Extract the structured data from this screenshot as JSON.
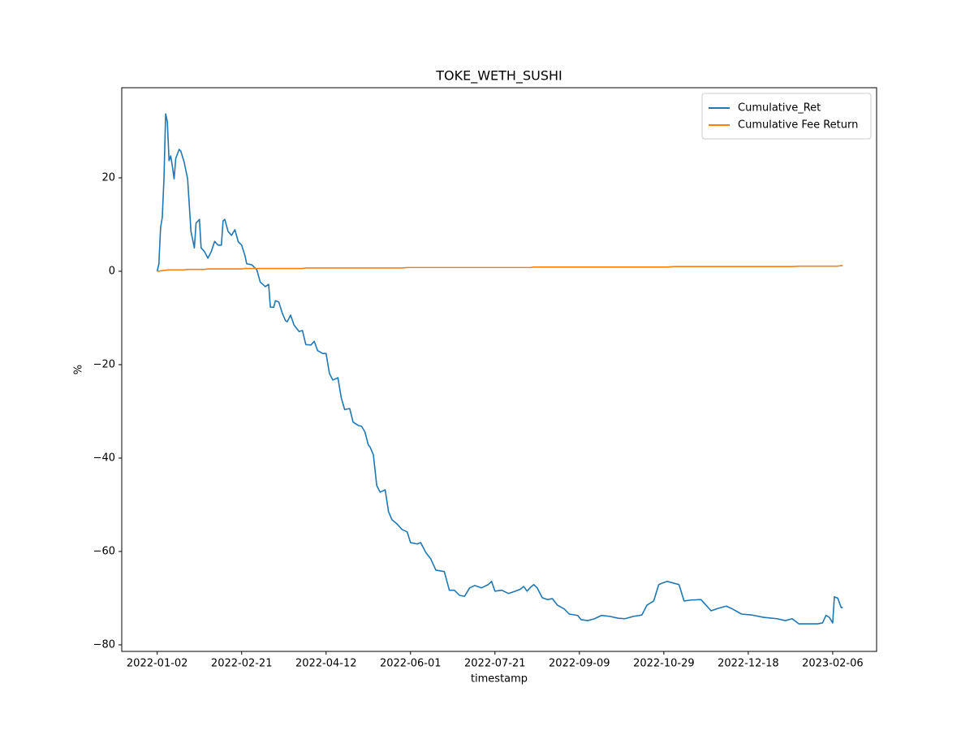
{
  "chart_data": {
    "type": "line",
    "title": "TOKE_WETH_SUSHI",
    "x_label": "timestamp",
    "y_label": "%",
    "x": [
      "2022-01-02",
      "2022-01-03",
      "2022-01-04",
      "2022-01-05",
      "2022-01-06",
      "2022-01-07",
      "2022-01-08",
      "2022-01-09",
      "2022-01-10",
      "2022-01-11",
      "2022-01-12",
      "2022-01-13",
      "2022-01-15",
      "2022-01-16",
      "2022-01-18",
      "2022-01-20",
      "2022-01-22",
      "2022-01-24",
      "2022-01-25",
      "2022-01-27",
      "2022-01-28",
      "2022-01-30",
      "2022-02-01",
      "2022-02-03",
      "2022-02-05",
      "2022-02-07",
      "2022-02-09",
      "2022-02-10",
      "2022-02-11",
      "2022-02-13",
      "2022-02-15",
      "2022-02-17",
      "2022-02-19",
      "2022-02-21",
      "2022-02-23",
      "2022-02-24",
      "2022-02-27",
      "2022-03-02",
      "2022-03-04",
      "2022-03-07",
      "2022-03-09",
      "2022-03-10",
      "2022-03-12",
      "2022-03-13",
      "2022-03-15",
      "2022-03-17",
      "2022-03-19",
      "2022-03-20",
      "2022-03-22",
      "2022-03-24",
      "2022-03-27",
      "2022-03-29",
      "2022-03-31",
      "2022-04-03",
      "2022-04-05",
      "2022-04-07",
      "2022-04-10",
      "2022-04-12",
      "2022-04-14",
      "2022-04-16",
      "2022-04-19",
      "2022-04-21",
      "2022-04-23",
      "2022-04-26",
      "2022-04-28",
      "2022-05-01",
      "2022-05-03",
      "2022-05-05",
      "2022-05-07",
      "2022-05-08",
      "2022-05-10",
      "2022-05-12",
      "2022-05-14",
      "2022-05-17",
      "2022-05-19",
      "2022-05-21",
      "2022-05-24",
      "2022-05-27",
      "2022-05-30",
      "2022-06-01",
      "2022-06-05",
      "2022-06-07",
      "2022-06-10",
      "2022-06-13",
      "2022-06-16",
      "2022-06-21",
      "2022-06-24",
      "2022-06-27",
      "2022-06-30",
      "2022-07-03",
      "2022-07-06",
      "2022-07-09",
      "2022-07-13",
      "2022-07-17",
      "2022-07-19",
      "2022-07-21",
      "2022-07-25",
      "2022-07-29",
      "2022-08-02",
      "2022-08-05",
      "2022-08-07",
      "2022-08-09",
      "2022-08-11",
      "2022-08-13",
      "2022-08-15",
      "2022-08-18",
      "2022-08-21",
      "2022-08-24",
      "2022-08-27",
      "2022-08-31",
      "2022-09-03",
      "2022-09-08",
      "2022-09-10",
      "2022-09-14",
      "2022-09-18",
      "2022-09-22",
      "2022-09-27",
      "2022-10-02",
      "2022-10-06",
      "2022-10-11",
      "2022-10-16",
      "2022-10-19",
      "2022-10-23",
      "2022-10-26",
      "2022-10-28",
      "2022-10-31",
      "2022-11-04",
      "2022-11-07",
      "2022-11-10",
      "2022-11-14",
      "2022-11-20",
      "2022-11-23",
      "2022-11-26",
      "2022-11-30",
      "2022-12-05",
      "2022-12-08",
      "2022-12-14",
      "2022-12-20",
      "2022-12-27",
      "2023-01-04",
      "2023-01-09",
      "2023-01-13",
      "2023-01-17",
      "2023-01-23",
      "2023-01-28",
      "2023-01-31",
      "2023-02-02",
      "2023-02-04",
      "2023-02-06",
      "2023-02-07",
      "2023-02-09",
      "2023-02-11",
      "2023-02-12"
    ],
    "series": [
      {
        "name": "Cumulative_Ret",
        "color": "#1f77b4",
        "values": [
          0,
          1.6,
          9.4,
          11.5,
          19.8,
          33.7,
          32,
          23.7,
          24.7,
          22.4,
          19.8,
          24.2,
          26.1,
          25.7,
          23.3,
          19.8,
          8.5,
          5,
          10.3,
          11.1,
          5,
          4.2,
          2.8,
          4.2,
          6.4,
          5.6,
          5.6,
          10.8,
          11.1,
          8.5,
          7.7,
          8.9,
          6.3,
          5.6,
          3.3,
          1.6,
          1.4,
          0.3,
          -2.3,
          -3.3,
          -2.8,
          -7.7,
          -7.7,
          -6.3,
          -6.6,
          -8.9,
          -10.6,
          -10.8,
          -9.4,
          -11.5,
          -12.9,
          -12.7,
          -15.7,
          -15.8,
          -15,
          -17,
          -17.6,
          -17.6,
          -21.9,
          -23.3,
          -22.8,
          -27.1,
          -29.6,
          -29.4,
          -32.3,
          -33,
          -33.2,
          -34.4,
          -37.2,
          -37.6,
          -39.3,
          -45.9,
          -47.3,
          -46.8,
          -51.5,
          -53.2,
          -54.1,
          -55.3,
          -55.8,
          -58.1,
          -58.4,
          -58.1,
          -60.2,
          -61.6,
          -64,
          -64.3,
          -68.3,
          -68.3,
          -69.4,
          -69.6,
          -67.8,
          -67.3,
          -67.8,
          -67.1,
          -66.4,
          -68.5,
          -68.3,
          -69,
          -68.5,
          -68.1,
          -67.5,
          -68.5,
          -67.7,
          -67.1,
          -67.8,
          -69.9,
          -70.3,
          -70.1,
          -71.5,
          -72.3,
          -73.4,
          -73.7,
          -74.6,
          -74.8,
          -74.4,
          -73.7,
          -73.9,
          -74.3,
          -74.4,
          -73.9,
          -73.6,
          -71.5,
          -70.6,
          -67.1,
          -66.8,
          -66.4,
          -66.8,
          -67.1,
          -70.6,
          -70.4,
          -70.3,
          -71.5,
          -72.7,
          -72.2,
          -71.7,
          -72.2,
          -73.4,
          -73.6,
          -74.1,
          -74.4,
          -74.8,
          -74.4,
          -75.5,
          -75.5,
          -75.5,
          -75.3,
          -73.7,
          -74.1,
          -75.3,
          -69.7,
          -70,
          -72,
          -72
        ]
      },
      {
        "name": "Cumulative Fee Return",
        "color": "#ff7f0e",
        "values": [
          0,
          0,
          0.1,
          0.1,
          0.2,
          0.2,
          0.3,
          0.3,
          0.3,
          0.3,
          0.3,
          0.3,
          0.3,
          0.3,
          0.3,
          0.4,
          0.4,
          0.4,
          0.4,
          0.4,
          0.4,
          0.4,
          0.5,
          0.5,
          0.5,
          0.5,
          0.5,
          0.5,
          0.5,
          0.5,
          0.5,
          0.5,
          0.5,
          0.5,
          0.6,
          0.6,
          0.6,
          0.6,
          0.6,
          0.6,
          0.6,
          0.6,
          0.6,
          0.6,
          0.6,
          0.6,
          0.6,
          0.6,
          0.6,
          0.6,
          0.6,
          0.6,
          0.7,
          0.7,
          0.7,
          0.7,
          0.7,
          0.7,
          0.7,
          0.7,
          0.7,
          0.7,
          0.7,
          0.7,
          0.7,
          0.7,
          0.7,
          0.7,
          0.7,
          0.7,
          0.7,
          0.7,
          0.7,
          0.7,
          0.7,
          0.7,
          0.7,
          0.7,
          0.8,
          0.8,
          0.8,
          0.8,
          0.8,
          0.8,
          0.8,
          0.8,
          0.8,
          0.8,
          0.8,
          0.8,
          0.8,
          0.8,
          0.8,
          0.8,
          0.8,
          0.8,
          0.8,
          0.8,
          0.8,
          0.8,
          0.8,
          0.8,
          0.8,
          0.9,
          0.9,
          0.9,
          0.9,
          0.9,
          0.9,
          0.9,
          0.9,
          0.9,
          0.9,
          0.9,
          0.9,
          0.9,
          0.9,
          0.9,
          0.9,
          0.9,
          0.9,
          0.9,
          0.9,
          0.9,
          0.9,
          0.9,
          1.0,
          1.0,
          1.0,
          1.0,
          1.0,
          1.0,
          1.0,
          1.0,
          1.0,
          1.0,
          1.0,
          1.0,
          1.0,
          1.0,
          1.0,
          1.0,
          1.1,
          1.1,
          1.1,
          1.1,
          1.1,
          1.1,
          1.1,
          1.1,
          1.1,
          1.2,
          1.2
        ]
      }
    ],
    "xlim": [
      "2021-12-12",
      "2023-03-04"
    ],
    "xticks": [
      "2022-01-02",
      "2022-02-21",
      "2022-04-12",
      "2022-06-01",
      "2022-07-21",
      "2022-09-09",
      "2022-10-29",
      "2022-12-18",
      "2023-02-06"
    ],
    "ylim": [
      -81.4,
      39.3
    ],
    "yticks": [
      {
        "value": -80,
        "label": "−80"
      },
      {
        "value": -60,
        "label": "−60"
      },
      {
        "value": -40,
        "label": "−40"
      },
      {
        "value": -20,
        "label": "−20"
      },
      0,
      20
    ],
    "grid": false,
    "legend": "upper right"
  }
}
